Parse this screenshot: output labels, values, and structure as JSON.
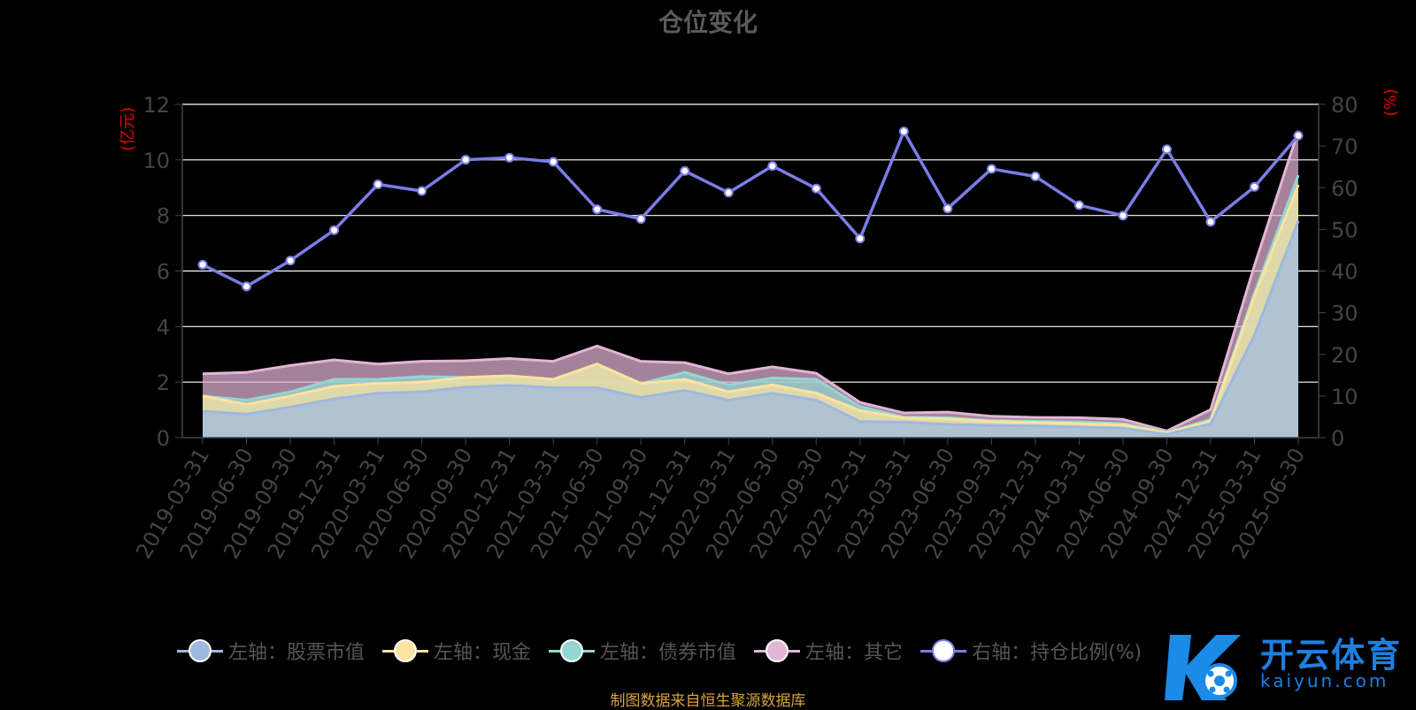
{
  "title": "仓位变化",
  "source_note": "制图数据来自恒生聚源数据库",
  "watermark": {
    "brand": "开云体育",
    "domain": "kaiyun.com"
  },
  "colors": {
    "stock": "#9fb8e0",
    "cash": "#fbe3a0",
    "bond": "#93d6d2",
    "other": "#e3b5d6",
    "ratio": "#7b7de8",
    "axis_unit": "#e60000",
    "grid": "#ffffff",
    "axis_text": "#444444"
  },
  "chart_data": {
    "type": "area",
    "xlabel": "",
    "y_left_label": "(亿元)",
    "y_right_label": "(%)",
    "ylim_left": [
      0,
      12
    ],
    "ylim_right": [
      0,
      80
    ],
    "y_left_ticks": [
      "0",
      "2",
      "4",
      "6",
      "8",
      "10",
      "12"
    ],
    "y_right_ticks": [
      "0",
      "10",
      "20",
      "30",
      "40",
      "50",
      "60",
      "70",
      "80"
    ],
    "grid": true,
    "legend_position": "bottom",
    "stacked": true,
    "categories": [
      "2019-03-31",
      "2019-06-30",
      "2019-09-30",
      "2019-12-31",
      "2020-03-31",
      "2020-06-30",
      "2020-09-30",
      "2020-12-31",
      "2021-03-31",
      "2021-06-30",
      "2021-09-30",
      "2021-12-31",
      "2022-03-31",
      "2022-06-30",
      "2022-09-30",
      "2022-12-31",
      "2023-03-31",
      "2023-06-30",
      "2023-09-30",
      "2023-12-31",
      "2024-03-31",
      "2024-06-30",
      "2024-09-30",
      "2024-12-31",
      "2025-03-31",
      "2025-06-30"
    ],
    "series": [
      {
        "key": "stock",
        "name": "左轴：股票市值",
        "axis": "left",
        "values": [
          0.95,
          0.85,
          1.1,
          1.4,
          1.6,
          1.65,
          1.82,
          1.88,
          1.8,
          1.8,
          1.45,
          1.7,
          1.35,
          1.6,
          1.35,
          0.58,
          0.56,
          0.48,
          0.44,
          0.42,
          0.38,
          0.34,
          0.12,
          0.5,
          3.7,
          7.8
        ]
      },
      {
        "key": "cash",
        "name": "左轴：现金",
        "axis": "left",
        "values": [
          0.55,
          0.35,
          0.4,
          0.45,
          0.35,
          0.35,
          0.35,
          0.35,
          0.3,
          0.85,
          0.5,
          0.4,
          0.3,
          0.3,
          0.25,
          0.4,
          0.15,
          0.2,
          0.14,
          0.13,
          0.13,
          0.12,
          0.05,
          0.1,
          1.4,
          1.3
        ]
      },
      {
        "key": "bond",
        "name": "左轴：债券市值",
        "axis": "left",
        "values": [
          0,
          0.15,
          0.15,
          0.25,
          0.15,
          0.2,
          0,
          0,
          0,
          0,
          0,
          0.25,
          0.25,
          0.25,
          0.5,
          0.14,
          0.03,
          0.04,
          0.04,
          0.04,
          0.06,
          0.05,
          0.02,
          0.06,
          0.1,
          0.35
        ]
      },
      {
        "key": "other",
        "name": "左轴：其它",
        "axis": "left",
        "values": [
          0.8,
          1.0,
          0.95,
          0.7,
          0.55,
          0.55,
          0.6,
          0.62,
          0.65,
          0.65,
          0.8,
          0.35,
          0.4,
          0.4,
          0.22,
          0.15,
          0.15,
          0.2,
          0.15,
          0.14,
          0.15,
          0.15,
          0.05,
          0.35,
          1.0,
          1.6
        ]
      },
      {
        "key": "ratio",
        "name": "右轴：持仓比例(%)",
        "axis": "right",
        "values": [
          41.5,
          36.3,
          42.5,
          49.8,
          60.8,
          59.2,
          66.7,
          67.2,
          66.2,
          54.8,
          52.5,
          64,
          58.8,
          65.2,
          59.8,
          47.8,
          73.5,
          55,
          64.5,
          62.7,
          55.8,
          53.3,
          69.2,
          51.8,
          60.2,
          72.5
        ]
      }
    ]
  }
}
